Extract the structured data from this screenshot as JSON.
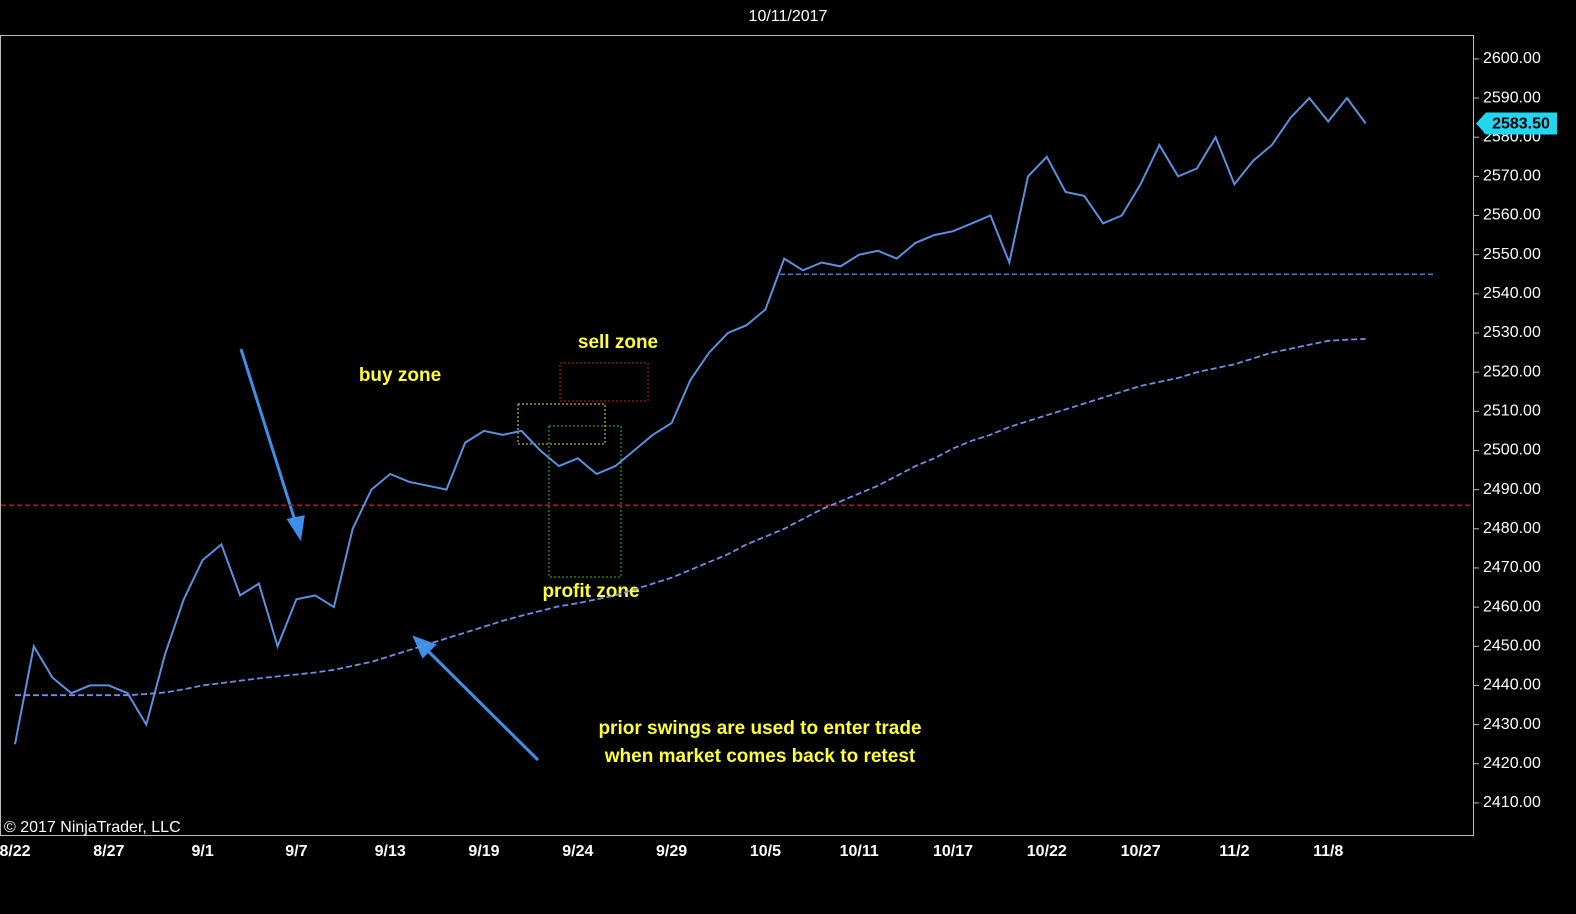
{
  "chart_data": {
    "type": "line",
    "title": "10/11/2017",
    "categories": [
      "8/22",
      null,
      null,
      null,
      null,
      "8/27",
      null,
      null,
      null,
      null,
      "9/1",
      null,
      null,
      null,
      null,
      "9/7",
      null,
      null,
      null,
      null,
      "9/13",
      null,
      null,
      null,
      null,
      "9/19",
      null,
      null,
      null,
      null,
      "9/24",
      null,
      null,
      null,
      null,
      "9/29",
      null,
      null,
      null,
      null,
      "10/5",
      null,
      null,
      null,
      null,
      "10/11",
      null,
      null,
      null,
      null,
      "10/17",
      null,
      null,
      null,
      null,
      "10/22",
      null,
      null,
      null,
      null,
      "10/27",
      null,
      null,
      null,
      null,
      "11/2",
      null,
      null,
      null,
      null,
      "11/8",
      null,
      null
    ],
    "series": [
      {
        "name": null,
        "color": "#5b8fe0",
        "values": [
          2425,
          2450,
          2442,
          2438,
          2440,
          2440,
          2438,
          2430,
          2448,
          2462,
          2472,
          2476,
          2463,
          2466,
          2450,
          2462,
          2463,
          2460,
          2480,
          2490,
          2494,
          2492,
          2491,
          2490,
          2502,
          2505,
          2504,
          2505,
          2500,
          2496,
          2498,
          2494,
          2496,
          2500,
          2504,
          2507,
          2518,
          2525,
          2530,
          2532,
          2536,
          2549,
          2546,
          2548,
          2547,
          2550,
          2551,
          2549,
          2553,
          2555,
          2556,
          2558,
          2560,
          2548,
          2570,
          2575,
          2566,
          2565,
          2558,
          2560,
          2568,
          2578,
          2570,
          2572,
          2580,
          2568,
          2574,
          2578,
          2585,
          2590,
          2584,
          2590,
          2583.5
        ]
      },
      {
        "name": null,
        "color": "#6f8fe6",
        "dashed": true,
        "values": [
          2437.5,
          2437.5,
          2437.5,
          2437.5,
          2437.5,
          2437.5,
          2437.5,
          2437.8,
          2438.2,
          2439,
          2440,
          2440.6,
          2441.2,
          2441.8,
          2442.3,
          2442.8,
          2443.3,
          2444,
          2445,
          2446,
          2447.5,
          2449,
          2450.5,
          2452,
          2453.5,
          2455,
          2456.5,
          2457.8,
          2459,
          2460.2,
          2461,
          2462,
          2463,
          2464.5,
          2466,
          2467.5,
          2469.5,
          2471.5,
          2473.5,
          2476,
          2478,
          2480,
          2482.5,
          2485,
          2487,
          2489,
          2491,
          2493.5,
          2496,
          2498,
          2500.5,
          2502.5,
          2504,
          2506,
          2507.5,
          2509,
          2510.5,
          2512,
          2513.5,
          2515,
          2516.5,
          2517.5,
          2518.5,
          2520,
          2521,
          2522,
          2523.5,
          2525,
          2526,
          2527,
          2528,
          2528.3,
          2528.5
        ]
      }
    ],
    "levels": [
      {
        "value": 2486,
        "color": "#d01010"
      },
      {
        "value": 2545,
        "color": "#3a7fd5"
      }
    ],
    "last_price": {
      "value": 2583.5,
      "label": "2583.50"
    },
    "ylim": [
      2401.8,
      2606.1
    ],
    "yticks": [
      {
        "value": 2410,
        "label": "2410.00"
      },
      {
        "value": 2420,
        "label": "2420.00"
      },
      {
        "value": 2430,
        "label": "2430.00"
      },
      {
        "value": 2440,
        "label": "2440.00"
      },
      {
        "value": 2450,
        "label": "2450.00"
      },
      {
        "value": 2460,
        "label": "2460.00"
      },
      {
        "value": 2470,
        "label": "2470.00"
      },
      {
        "value": 2480,
        "label": "2480.00"
      },
      {
        "value": 2490,
        "label": "2490.00"
      },
      {
        "value": 2500,
        "label": "2500.00"
      },
      {
        "value": 2510,
        "label": "2510.00"
      },
      {
        "value": 2520,
        "label": "2520.00"
      },
      {
        "value": 2530,
        "label": "2530.00"
      },
      {
        "value": 2540,
        "label": "2540.00"
      },
      {
        "value": 2550,
        "label": "2550.00"
      },
      {
        "value": 2560,
        "label": "2560.00"
      },
      {
        "value": 2570,
        "label": "2570.00"
      },
      {
        "value": 2580,
        "label": "2580.00"
      },
      {
        "value": 2590,
        "label": "2590.00"
      },
      {
        "value": 2600,
        "label": "2600.00"
      }
    ],
    "annotations": [
      "buy zone",
      "sell zone",
      "profit zone",
      "prior swings are used to enter trade",
      "when market comes back to retest"
    ],
    "copyright": "© 2017 NinjaTrader, LLC"
  }
}
